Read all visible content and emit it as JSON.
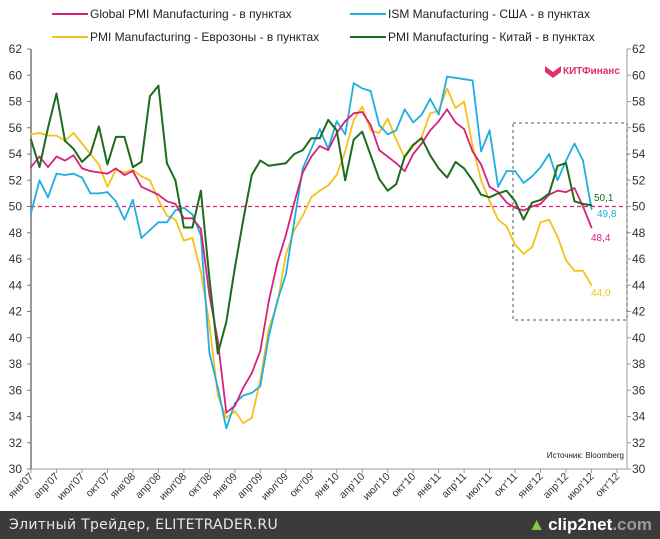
{
  "chart_data": {
    "type": "line",
    "title": "",
    "xlabel": "",
    "ylabel": "",
    "ylim": [
      30,
      62
    ],
    "yticks": [
      30,
      32,
      34,
      36,
      38,
      40,
      42,
      44,
      46,
      48,
      50,
      52,
      54,
      56,
      58,
      60,
      62
    ],
    "reference_line": 50,
    "x_tick_labels": [
      "янв'07",
      "апр'07",
      "июл'07",
      "окт'07",
      "янв'08",
      "апр'08",
      "июл'08",
      "окт'08",
      "янв'09",
      "апр'09",
      "июл'09",
      "окт'09",
      "янв'10",
      "апр'10",
      "июл'10",
      "окт'10",
      "янв'11",
      "апр'11",
      "июл'11",
      "окт'11",
      "янв'12",
      "апр'12",
      "июл'12",
      "окт'12"
    ],
    "x_start": "янв'07",
    "frequency": "monthly",
    "series": [
      {
        "name": "Global PMI Manufacturing - в пунктах",
        "color": "#d6237a",
        "last_label": "48,4",
        "values": [
          53.0,
          53.8,
          53.0,
          53.8,
          53.5,
          53.9,
          52.9,
          52.7,
          52.6,
          52.5,
          52.9,
          52.4,
          52.7,
          51.5,
          51.2,
          50.9,
          50.4,
          50.2,
          49.1,
          49.1,
          48.3,
          43.3,
          39.8,
          34.3,
          34.8,
          36.2,
          37.3,
          39.0,
          42.8,
          45.7,
          47.8,
          50.3,
          52.6,
          53.8,
          54.6,
          54.3,
          55.6,
          56.5,
          57.1,
          57.2,
          56.2,
          54.3,
          53.8,
          53.3,
          52.7,
          54.0,
          54.8,
          55.8,
          56.5,
          57.4,
          56.4,
          55.9,
          54.2,
          53.2,
          51.5,
          51.1,
          50.3,
          49.9,
          49.7,
          50.0,
          50.2,
          50.9,
          51.2,
          51.1,
          51.4,
          50.0,
          48.4
        ]
      },
      {
        "name": "ISM Manufacturing - США - в пунктах",
        "color": "#1eaee0",
        "last_label": "49,8",
        "values": [
          49.5,
          52.0,
          50.7,
          52.5,
          52.4,
          52.5,
          52.2,
          51.0,
          51.0,
          51.1,
          50.4,
          49.0,
          50.5,
          47.6,
          48.2,
          48.8,
          48.8,
          49.7,
          49.9,
          49.4,
          47.8,
          38.9,
          36.2,
          33.1,
          35.0,
          35.6,
          35.8,
          36.3,
          40.1,
          42.8,
          44.8,
          48.9,
          52.9,
          54.4,
          55.9,
          54.4,
          56.5,
          55.5,
          59.4,
          59.0,
          58.8,
          56.2,
          55.5,
          55.8,
          57.4,
          56.4,
          57.0,
          58.2,
          57.0,
          59.9,
          59.8,
          59.7,
          59.6,
          54.2,
          55.8,
          51.5,
          52.7,
          52.7,
          51.8,
          52.3,
          53.0,
          54.0,
          52.0,
          53.5,
          54.8,
          53.5,
          49.8
        ]
      },
      {
        "name": "PMI Manufacturing - Еврозоны - в пунктах",
        "color": "#f5c11a",
        "last_label": "44,0",
        "values": [
          55.5,
          55.6,
          55.4,
          55.4,
          55.0,
          55.6,
          54.8,
          54.0,
          53.2,
          51.5,
          52.8,
          52.6,
          52.8,
          52.3,
          52.0,
          50.5,
          49.3,
          49.0,
          47.4,
          47.6,
          45.0,
          41.1,
          35.6,
          33.9,
          34.4,
          33.5,
          33.9,
          36.8,
          40.7,
          42.6,
          46.3,
          48.2,
          49.3,
          50.7,
          51.2,
          51.6,
          52.4,
          54.2,
          56.6,
          57.6,
          55.8,
          55.6,
          56.7,
          55.1,
          53.7,
          54.6,
          55.3,
          57.1,
          57.3,
          59.0,
          57.5,
          58.0,
          54.6,
          52.0,
          50.4,
          49.0,
          48.5,
          47.1,
          46.4,
          46.9,
          48.8,
          49.0,
          47.7,
          45.9,
          45.1,
          45.1,
          44.0
        ]
      },
      {
        "name": "PMI Manufacturing - Китай - в пунктах",
        "color": "#1e6b1e",
        "last_label": "50,1",
        "values": [
          55.1,
          53.0,
          56.0,
          58.6,
          55.0,
          54.4,
          53.4,
          54.0,
          56.1,
          53.2,
          55.3,
          55.3,
          53.0,
          53.4,
          58.4,
          59.2,
          53.3,
          52.0,
          48.4,
          48.4,
          51.2,
          44.6,
          38.8,
          41.2,
          45.3,
          49.0,
          52.4,
          53.5,
          53.1,
          53.2,
          53.3,
          54.0,
          54.3,
          55.2,
          55.2,
          56.6,
          55.8,
          52.0,
          55.1,
          55.7,
          53.9,
          52.1,
          51.2,
          51.7,
          53.8,
          54.7,
          55.2,
          53.9,
          52.9,
          52.2,
          53.4,
          52.9,
          52.0,
          50.9,
          50.7,
          51.0,
          51.2,
          50.4,
          49.0,
          50.3,
          50.5,
          51.0,
          53.1,
          53.3,
          50.4,
          50.2,
          50.1
        ]
      }
    ],
    "legend_position": "top",
    "source": "Источник: Bloomberg",
    "logo": "КИТФинанс"
  },
  "footer": {
    "site": "Элитный Трейдер, ELITETRADER.RU",
    "brand_main": "clip2net",
    "brand_suffix": ".com"
  }
}
